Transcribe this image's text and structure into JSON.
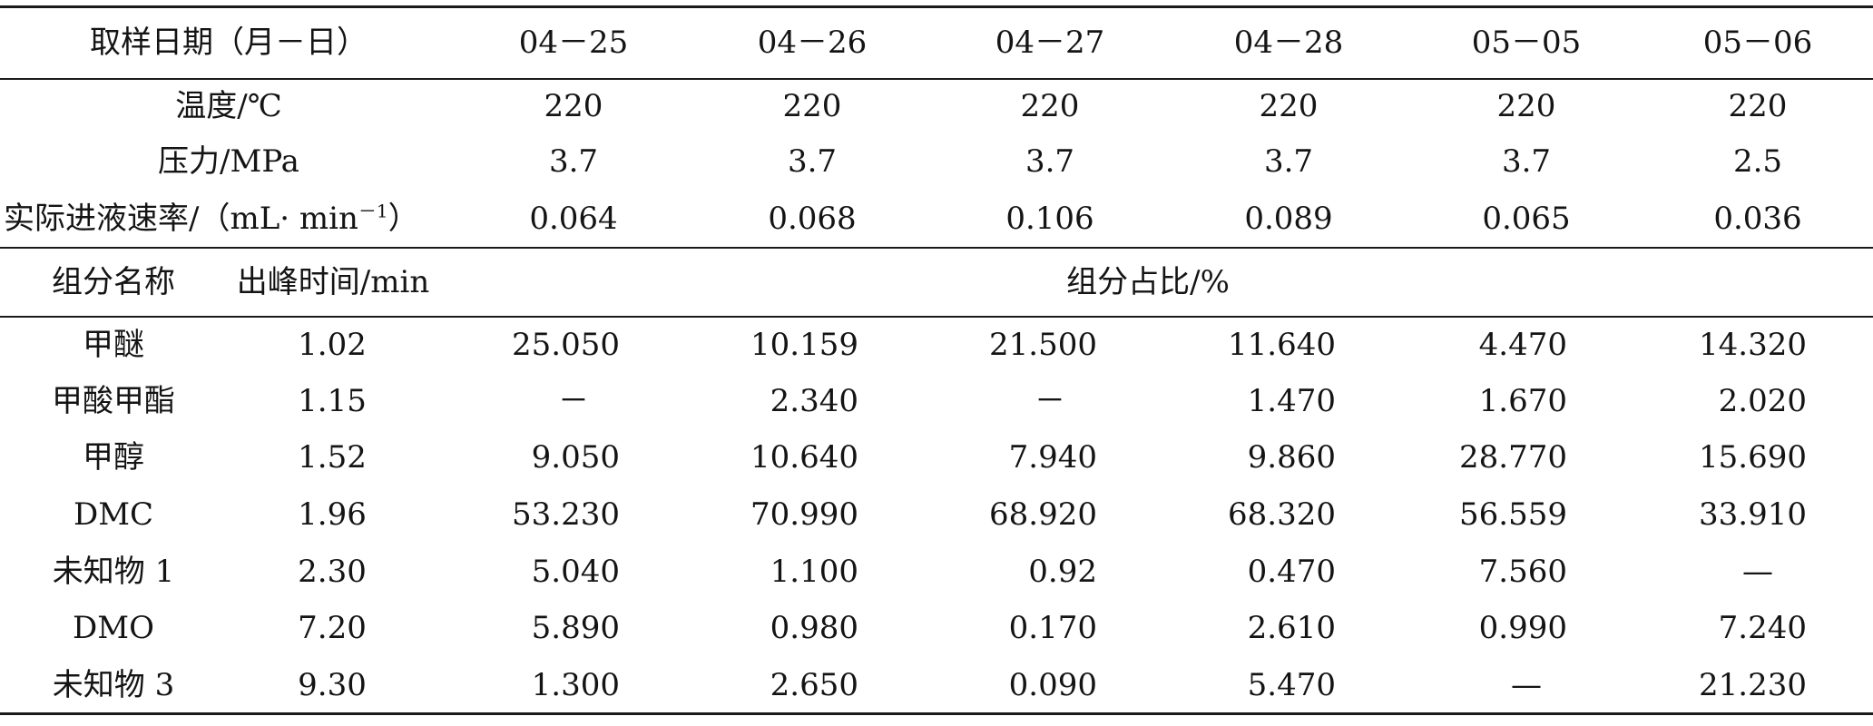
{
  "header": {
    "date_label": "取样日期（月－日）",
    "dates": [
      "04－25",
      "04－26",
      "04－27",
      "04－28",
      "05－05",
      "05－06"
    ]
  },
  "conditions": [
    {
      "label": "温度/℃",
      "values": [
        "220",
        "220",
        "220",
        "220",
        "220",
        "220"
      ]
    },
    {
      "label": "压力/MPa",
      "values": [
        "3.7",
        "3.7",
        "3.7",
        "3.7",
        "3.7",
        "2.5"
      ]
    },
    {
      "label": "实际进液速率/（mL· min",
      "label_sup": "－1",
      "label_tail": "）",
      "values": [
        "0.064",
        "0.068",
        "0.106",
        "0.089",
        "0.065",
        "0.036"
      ]
    }
  ],
  "subheader": {
    "component_name": "组分名称",
    "retention_time": "出峰时间/min",
    "proportion": "组分占比/%"
  },
  "components": [
    {
      "name": "甲醚",
      "time": "1.02",
      "values": [
        "25.050",
        "10.159",
        "21.500",
        "11.640",
        "4.470",
        "14.320"
      ]
    },
    {
      "name": "甲酸甲酯",
      "time": "1.15",
      "values": [
        "－",
        "2.340",
        "－",
        "1.470",
        "1.670",
        "2.020"
      ]
    },
    {
      "name": "甲醇",
      "time": "1.52",
      "values": [
        "9.050",
        "10.640",
        "7.940",
        "9.860",
        "28.770",
        "15.690"
      ]
    },
    {
      "name": "DMC",
      "time": "1.96",
      "values": [
        "53.230",
        "70.990",
        "68.920",
        "68.320",
        "56.559",
        "33.910"
      ]
    },
    {
      "name": "未知物 1",
      "time": "2.30",
      "values": [
        "5.040",
        "1.100",
        "0.92",
        "0.470",
        "7.560",
        "—"
      ]
    },
    {
      "name": "DMO",
      "time": "7.20",
      "values": [
        "5.890",
        "0.980",
        "0.170",
        "2.610",
        "0.990",
        "7.240"
      ]
    },
    {
      "name": "未知物 3",
      "time": "9.30",
      "values": [
        "1.300",
        "2.650",
        "0.090",
        "5.470",
        "—",
        "21.230"
      ]
    }
  ]
}
